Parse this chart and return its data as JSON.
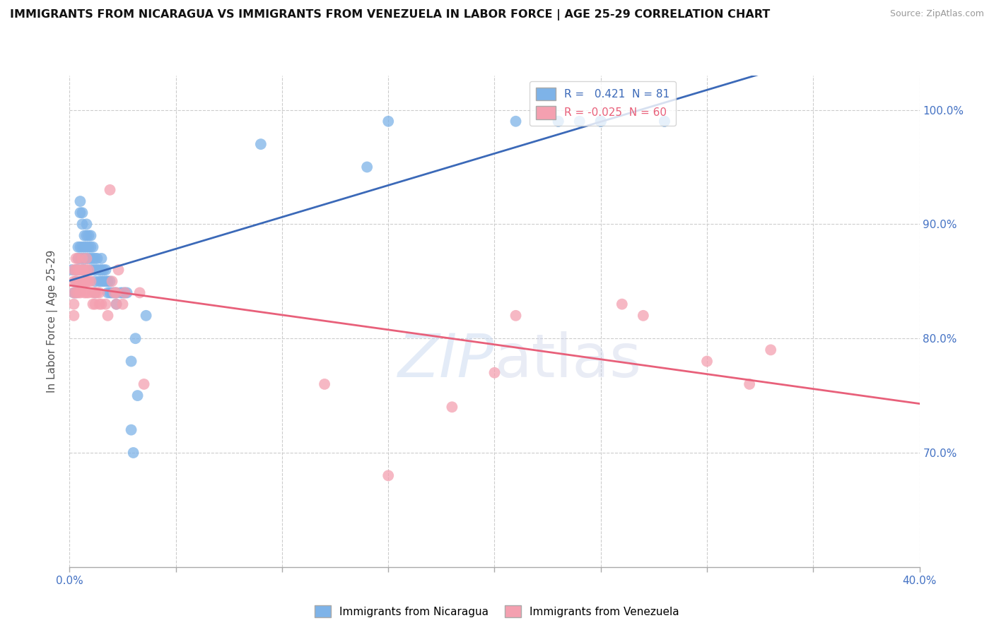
{
  "title": "IMMIGRANTS FROM NICARAGUA VS IMMIGRANTS FROM VENEZUELA IN LABOR FORCE | AGE 25-29 CORRELATION CHART",
  "source": "Source: ZipAtlas.com",
  "ylabel": "In Labor Force | Age 25-29",
  "nicaragua_r": 0.421,
  "nicaragua_n": 81,
  "venezuela_r": -0.025,
  "venezuela_n": 60,
  "xlim": [
    0.0,
    0.4
  ],
  "ylim": [
    0.6,
    1.03
  ],
  "ytick_positions": [
    0.7,
    0.8,
    0.9,
    1.0
  ],
  "ytick_labels": [
    "70.0%",
    "80.0%",
    "90.0%",
    "100.0%"
  ],
  "xtick_positions": [
    0.0,
    0.05,
    0.1,
    0.15,
    0.2,
    0.25,
    0.3,
    0.35,
    0.4
  ],
  "xtick_labels": [
    "0.0%",
    "",
    "",
    "",
    "",
    "",
    "",
    "",
    "40.0%"
  ],
  "nicaragua_color": "#7EB3E8",
  "venezuela_color": "#F4A0B0",
  "nicaragua_line_color": "#3B69B8",
  "venezuela_line_color": "#E8607A",
  "background_color": "#FFFFFF",
  "nicaragua_x": [
    0.001,
    0.002,
    0.003,
    0.003,
    0.003,
    0.004,
    0.004,
    0.004,
    0.005,
    0.005,
    0.005,
    0.005,
    0.006,
    0.006,
    0.006,
    0.006,
    0.006,
    0.007,
    0.007,
    0.007,
    0.007,
    0.008,
    0.008,
    0.008,
    0.008,
    0.009,
    0.009,
    0.009,
    0.01,
    0.01,
    0.01,
    0.01,
    0.011,
    0.011,
    0.011,
    0.012,
    0.012,
    0.012,
    0.012,
    0.013,
    0.013,
    0.014,
    0.014,
    0.015,
    0.015,
    0.015,
    0.016,
    0.016,
    0.017,
    0.017,
    0.018,
    0.018,
    0.019,
    0.019,
    0.02,
    0.021,
    0.022,
    0.022,
    0.024,
    0.025,
    0.026,
    0.027,
    0.029,
    0.029,
    0.03,
    0.031,
    0.032,
    0.036,
    0.09,
    0.14,
    0.15,
    0.21,
    0.23,
    0.23,
    0.24,
    0.25,
    0.25,
    0.25,
    0.25,
    0.28,
    0.28
  ],
  "nicaragua_y": [
    0.86,
    0.84,
    0.86,
    0.85,
    0.84,
    0.88,
    0.87,
    0.86,
    0.92,
    0.91,
    0.88,
    0.87,
    0.91,
    0.9,
    0.88,
    0.87,
    0.86,
    0.89,
    0.88,
    0.87,
    0.86,
    0.9,
    0.89,
    0.88,
    0.87,
    0.89,
    0.88,
    0.87,
    0.89,
    0.88,
    0.87,
    0.86,
    0.88,
    0.87,
    0.86,
    0.87,
    0.86,
    0.85,
    0.84,
    0.87,
    0.86,
    0.86,
    0.85,
    0.87,
    0.86,
    0.85,
    0.86,
    0.85,
    0.86,
    0.85,
    0.85,
    0.84,
    0.85,
    0.84,
    0.84,
    0.84,
    0.84,
    0.83,
    0.84,
    0.84,
    0.84,
    0.84,
    0.72,
    0.78,
    0.7,
    0.8,
    0.75,
    0.82,
    0.97,
    0.95,
    0.99,
    0.99,
    0.99,
    0.99,
    0.99,
    0.99,
    0.99,
    0.99,
    0.99,
    0.99,
    0.99
  ],
  "venezuela_x": [
    0.002,
    0.002,
    0.002,
    0.002,
    0.002,
    0.003,
    0.003,
    0.003,
    0.003,
    0.004,
    0.004,
    0.004,
    0.004,
    0.005,
    0.005,
    0.005,
    0.006,
    0.006,
    0.006,
    0.007,
    0.007,
    0.007,
    0.008,
    0.008,
    0.008,
    0.008,
    0.009,
    0.009,
    0.009,
    0.01,
    0.011,
    0.011,
    0.012,
    0.012,
    0.013,
    0.014,
    0.014,
    0.015,
    0.017,
    0.018,
    0.019,
    0.02,
    0.021,
    0.022,
    0.022,
    0.023,
    0.025,
    0.026,
    0.033,
    0.035,
    0.12,
    0.15,
    0.18,
    0.2,
    0.21,
    0.26,
    0.27,
    0.3,
    0.32,
    0.33
  ],
  "venezuela_y": [
    0.86,
    0.85,
    0.84,
    0.83,
    0.82,
    0.87,
    0.86,
    0.85,
    0.84,
    0.87,
    0.86,
    0.85,
    0.84,
    0.86,
    0.85,
    0.84,
    0.87,
    0.86,
    0.85,
    0.86,
    0.85,
    0.84,
    0.87,
    0.86,
    0.85,
    0.84,
    0.86,
    0.85,
    0.84,
    0.85,
    0.84,
    0.83,
    0.84,
    0.83,
    0.84,
    0.84,
    0.83,
    0.83,
    0.83,
    0.82,
    0.93,
    0.85,
    0.84,
    0.84,
    0.83,
    0.86,
    0.83,
    0.84,
    0.84,
    0.76,
    0.76,
    0.68,
    0.74,
    0.77,
    0.82,
    0.83,
    0.82,
    0.78,
    0.76,
    0.79
  ]
}
